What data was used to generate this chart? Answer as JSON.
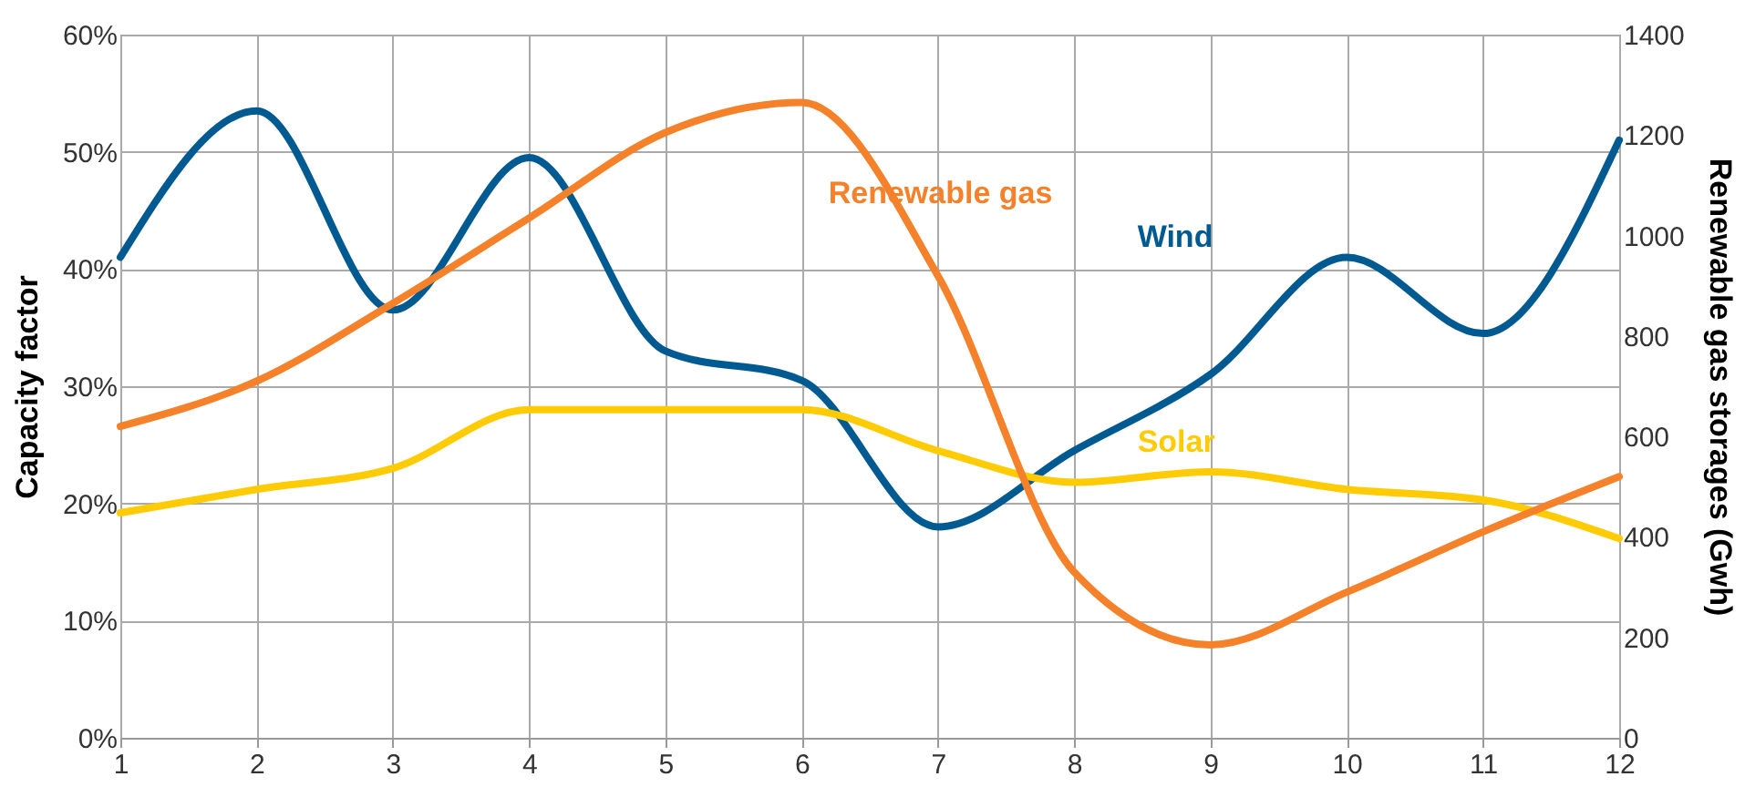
{
  "chart_data": {
    "type": "line",
    "ylabel": "Capacity factor",
    "y2label": "Renewable gas storages (Gwh)",
    "x": [
      1,
      2,
      3,
      4,
      5,
      6,
      7,
      8,
      9,
      10,
      11,
      12
    ],
    "series": [
      {
        "name": "Renewable gas",
        "color": "#f5822a",
        "axis": "y2",
        "values": [
          620,
          710,
          865,
          1035,
          1205,
          1265,
          920,
          330,
          185,
          290,
          410,
          520
        ]
      },
      {
        "name": "Wind",
        "color": "#005a92",
        "values": [
          41,
          53.5,
          36.5,
          49.5,
          33,
          30.5,
          18,
          24.5,
          31,
          41,
          34.5,
          51
        ]
      },
      {
        "name": "Solar",
        "color": "#ffcb05",
        "values": [
          19.2,
          21.2,
          23,
          28,
          28,
          28,
          24.5,
          21.8,
          22.7,
          21.2,
          20.3,
          17
        ]
      }
    ],
    "xlim": [
      1,
      12
    ],
    "xticks": [
      1,
      2,
      3,
      4,
      5,
      6,
      7,
      8,
      9,
      10,
      11,
      12
    ],
    "ylim": [
      0,
      60
    ],
    "yticks": [
      {
        "value": 0,
        "label": "0%"
      },
      {
        "value": 10,
        "label": "10%"
      },
      {
        "value": 20,
        "label": "20%"
      },
      {
        "value": 30,
        "label": "30%"
      },
      {
        "value": 40,
        "label": "40%"
      },
      {
        "value": 50,
        "label": "50%"
      },
      {
        "value": 60,
        "label": "60%"
      }
    ],
    "y2lim": [
      0,
      1400
    ],
    "y2ticks": [
      0,
      200,
      400,
      600,
      800,
      1000,
      1200,
      1400
    ],
    "grid": true
  }
}
